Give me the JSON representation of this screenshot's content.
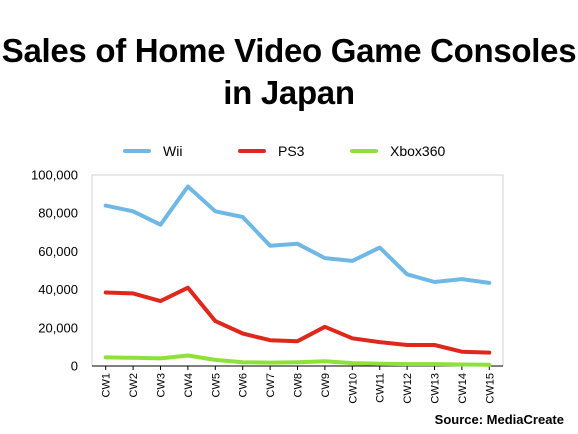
{
  "title_line1": "Sales of Home Video Game Consoles",
  "title_line2": "in Japan",
  "source": "Source: MediaCreate",
  "chart_data": {
    "type": "line",
    "categories": [
      "CW1",
      "CW2",
      "CW3",
      "CW4",
      "CW5",
      "CW6",
      "CW7",
      "CW8",
      "CW9",
      "CW10",
      "CW11",
      "CW12",
      "CW13",
      "CW14",
      "CW15"
    ],
    "ylim": [
      0,
      100000
    ],
    "yticks": [
      0,
      20000,
      40000,
      60000,
      80000,
      100000
    ],
    "ytick_labels": [
      "0",
      "20,000",
      "40,000",
      "60,000",
      "80,000",
      "100,000"
    ],
    "legend_position": "top",
    "grid": false,
    "series": [
      {
        "name": "Wii",
        "color": "#6fb8e6",
        "values": [
          84000,
          81000,
          74000,
          94000,
          81000,
          78000,
          63000,
          64000,
          56500,
          55000,
          62000,
          48000,
          44000,
          45500,
          43500
        ]
      },
      {
        "name": "PS3",
        "color": "#e0271c",
        "values": [
          38500,
          38000,
          34000,
          41000,
          23500,
          17000,
          13500,
          13000,
          20500,
          14500,
          12500,
          11000,
          11000,
          7500,
          7000
        ]
      },
      {
        "name": "Xbox360",
        "color": "#8fe03a",
        "values": [
          4500,
          4300,
          4000,
          5500,
          3200,
          2000,
          1800,
          2000,
          2500,
          1500,
          1200,
          1000,
          1000,
          800,
          700
        ]
      }
    ]
  }
}
